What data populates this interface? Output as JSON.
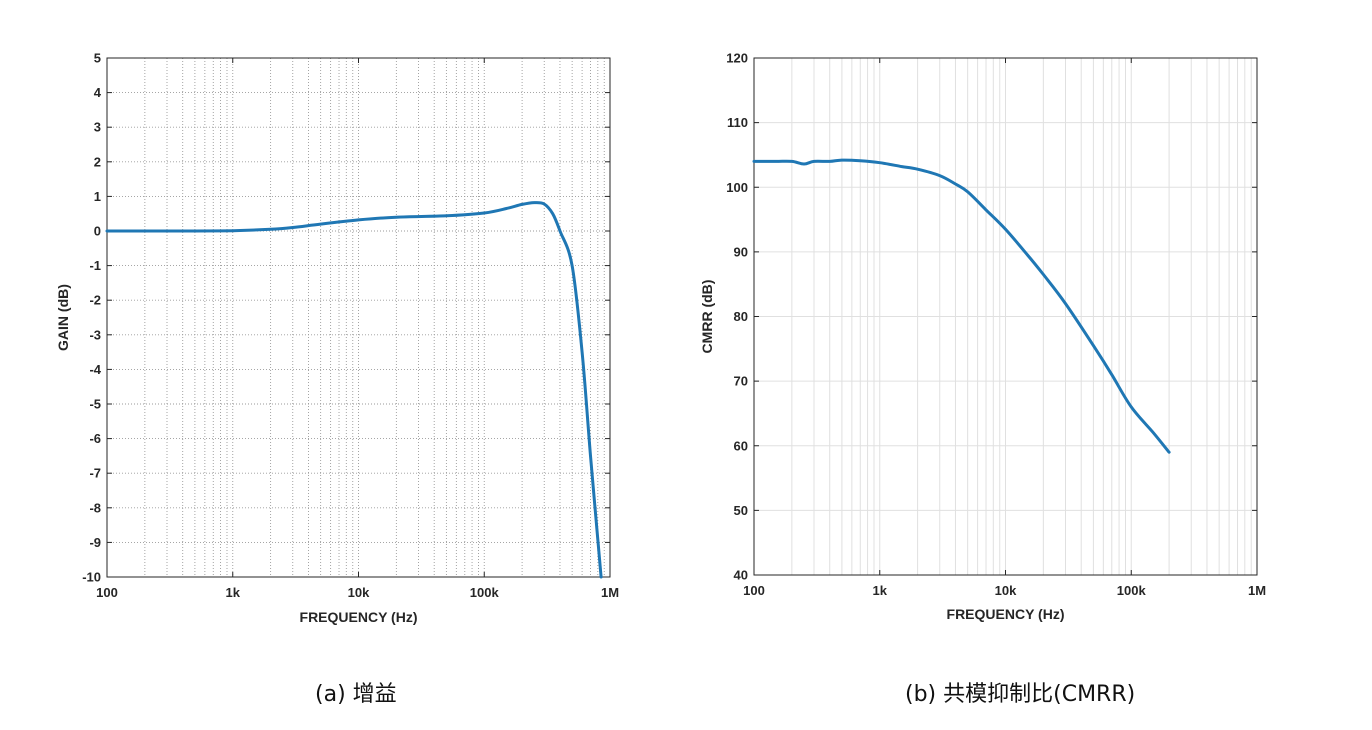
{
  "chart_data": [
    {
      "type": "line",
      "title": "",
      "xlabel": "FREQUENCY (Hz)",
      "ylabel": "GAIN (dB)",
      "xscale": "log",
      "xlim": [
        100,
        1000000
      ],
      "ylim": [
        -10,
        5
      ],
      "xticks": [
        {
          "value": 100,
          "label": "100"
        },
        {
          "value": 1000,
          "label": "1k"
        },
        {
          "value": 10000,
          "label": "10k"
        },
        {
          "value": 100000,
          "label": "100k"
        },
        {
          "value": 1000000,
          "label": "1M"
        }
      ],
      "yticks": [
        {
          "value": 5,
          "label": "5"
        },
        {
          "value": 4,
          "label": "4"
        },
        {
          "value": 3,
          "label": "3"
        },
        {
          "value": 2,
          "label": "2"
        },
        {
          "value": 1,
          "label": "1"
        },
        {
          "value": 0,
          "label": "0"
        },
        {
          "value": -1,
          "label": "-1"
        },
        {
          "value": -2,
          "label": "-2"
        },
        {
          "value": -3,
          "label": "-3"
        },
        {
          "value": -4,
          "label": "-4"
        },
        {
          "value": -5,
          "label": "-5"
        },
        {
          "value": -6,
          "label": "-6"
        },
        {
          "value": -7,
          "label": "-7"
        },
        {
          "value": -8,
          "label": "-8"
        },
        {
          "value": -9,
          "label": "-9"
        },
        {
          "value": -10,
          "label": "-10"
        }
      ],
      "grid": "dotted",
      "series": [
        {
          "name": "Gain",
          "color": "#1f77b4",
          "x": [
            100,
            500,
            1000,
            2000,
            3000,
            5000,
            10000,
            20000,
            50000,
            100000,
            150000,
            200000,
            250000,
            300000,
            350000,
            400000,
            500000,
            600000,
            700000,
            850000
          ],
          "y": [
            0,
            0,
            0.01,
            0.05,
            0.1,
            0.2,
            0.32,
            0.4,
            0.44,
            0.52,
            0.65,
            0.77,
            0.82,
            0.78,
            0.5,
            0.0,
            -1.0,
            -3.5,
            -6.5,
            -10
          ]
        }
      ]
    },
    {
      "type": "line",
      "title": "",
      "xlabel": "FREQUENCY (Hz)",
      "ylabel": "CMRR (dB)",
      "xscale": "log",
      "xlim": [
        100,
        1000000
      ],
      "ylim": [
        40,
        120
      ],
      "xticks": [
        {
          "value": 100,
          "label": "100"
        },
        {
          "value": 1000,
          "label": "1k"
        },
        {
          "value": 10000,
          "label": "10k"
        },
        {
          "value": 100000,
          "label": "100k"
        },
        {
          "value": 1000000,
          "label": "1M"
        }
      ],
      "yticks": [
        {
          "value": 120,
          "label": "120"
        },
        {
          "value": 110,
          "label": "110"
        },
        {
          "value": 100,
          "label": "100"
        },
        {
          "value": 90,
          "label": "90"
        },
        {
          "value": 80,
          "label": "80"
        },
        {
          "value": 70,
          "label": "70"
        },
        {
          "value": 60,
          "label": "60"
        },
        {
          "value": 50,
          "label": "50"
        },
        {
          "value": 40,
          "label": "40"
        }
      ],
      "grid": "solid",
      "series": [
        {
          "name": "CMRR",
          "color": "#1f77b4",
          "x": [
            100,
            150,
            200,
            250,
            300,
            400,
            500,
            700,
            1000,
            1500,
            2000,
            3000,
            4000,
            5000,
            7000,
            10000,
            15000,
            20000,
            30000,
            50000,
            70000,
            100000,
            150000,
            200000
          ],
          "y": [
            104,
            104,
            104,
            103.6,
            104,
            104,
            104.2,
            104.1,
            103.8,
            103.2,
            102.8,
            101.8,
            100.5,
            99.3,
            96.5,
            93.5,
            89.5,
            86.5,
            82,
            75.5,
            71,
            66,
            62,
            59
          ]
        }
      ]
    }
  ],
  "captions": {
    "a": "(a) 增益",
    "b": "(b) 共模抑制比(CMRR)"
  }
}
